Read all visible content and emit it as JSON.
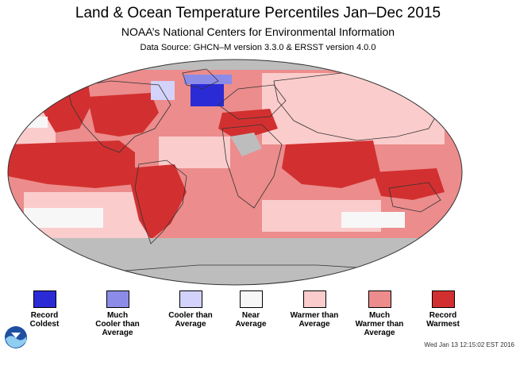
{
  "header": {
    "title": "Land & Ocean Temperature Percentiles Jan–Dec 2015",
    "subtitle": "NOAA’s National Centers for Environmental Information",
    "source": "Data Source: GHCN–M version 3.3.0 & ERSST version 4.0.0"
  },
  "map": {
    "projection": "Robinson",
    "missing_data_color": "#bdbdbd",
    "regions": [
      {
        "name": "Arctic",
        "category": "much_warmer"
      },
      {
        "name": "North Pacific",
        "category": "record_warmest"
      },
      {
        "name": "Western North America",
        "category": "record_warmest"
      },
      {
        "name": "Eastern North America",
        "category": "warmer"
      },
      {
        "name": "North Atlantic (south of Greenland)",
        "category": "record_coldest"
      },
      {
        "name": "Central/East Pacific",
        "category": "record_warmest"
      },
      {
        "name": "Northern South America",
        "category": "record_warmest"
      },
      {
        "name": "South Atlantic",
        "category": "much_warmer"
      },
      {
        "name": "Europe",
        "category": "much_warmer"
      },
      {
        "name": "Africa",
        "category": "much_warmer"
      },
      {
        "name": "Indian Ocean",
        "category": "record_warmest"
      },
      {
        "name": "Asia",
        "category": "warmer"
      },
      {
        "name": "Southern Ocean",
        "category": "no_data"
      },
      {
        "name": "South Pacific (south of New Zealand)",
        "category": "near"
      }
    ]
  },
  "legend": {
    "items": [
      {
        "id": "record_coldest",
        "label": "Record\nColdest",
        "color": "#2b2bd6"
      },
      {
        "id": "much_cooler",
        "label": "Much\nCooler than\nAverage",
        "color": "#8c8ce8"
      },
      {
        "id": "cooler",
        "label": "Cooler than\nAverage",
        "color": "#d2d2fb"
      },
      {
        "id": "near",
        "label": "Near\nAverage",
        "color": "#f7f7f7"
      },
      {
        "id": "warmer",
        "label": "Warmer than\nAverage",
        "color": "#fbcccc"
      },
      {
        "id": "much_warmer",
        "label": "Much\nWarmer than\nAverage",
        "color": "#ec8c8c"
      },
      {
        "id": "record_warmest",
        "label": "Record\nWarmest",
        "color": "#d23030"
      }
    ]
  },
  "footer": {
    "timestamp": "Wed Jan 13 12:15:02 EST 2016",
    "logo_text": "NOAA"
  }
}
